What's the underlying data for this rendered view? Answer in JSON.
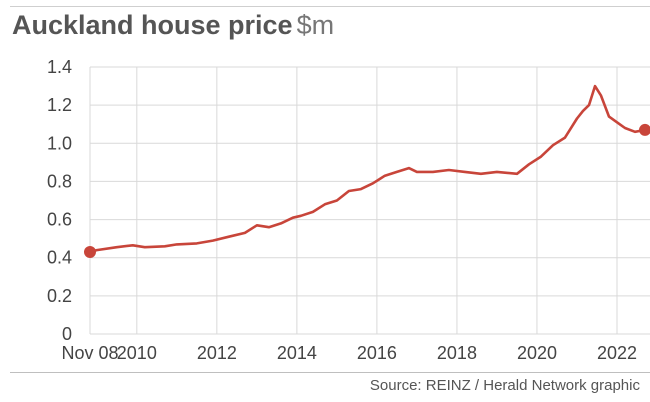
{
  "header": {
    "title": "Auckland house price",
    "unit": "$m"
  },
  "footer": {
    "source": "Source: REINZ / Herald Network graphic"
  },
  "colors": {
    "line": "#c8453a",
    "grid": "#d9d9d9",
    "text": "#444444"
  },
  "chart_data": {
    "type": "line",
    "title": "Auckland house price",
    "ylabel": "$m",
    "xlim": [
      2008.83,
      2022.7
    ],
    "ylim": [
      0,
      1.4
    ],
    "yticks": [
      0,
      0.2,
      0.4,
      0.6,
      0.8,
      1.0,
      1.2,
      1.4
    ],
    "ytick_labels": [
      "0",
      "0.2",
      "0.4",
      "0.6",
      "0.8",
      "1.0",
      "1.2",
      "1.4"
    ],
    "xticks": [
      2008.83,
      2010,
      2012,
      2014,
      2016,
      2018,
      2020,
      2022
    ],
    "xtick_labels": [
      "Nov 08",
      "2010",
      "2012",
      "2014",
      "2016",
      "2018",
      "2020",
      "2022"
    ],
    "grid": true,
    "markers": [
      "start",
      "end"
    ],
    "x": [
      2008.83,
      2009.0,
      2009.5,
      2009.9,
      2010.2,
      2010.7,
      2011.0,
      2011.5,
      2011.9,
      2012.3,
      2012.7,
      2013.0,
      2013.3,
      2013.6,
      2013.9,
      2014.1,
      2014.4,
      2014.7,
      2015.0,
      2015.3,
      2015.6,
      2015.9,
      2016.2,
      2016.5,
      2016.8,
      2017.0,
      2017.4,
      2017.8,
      2018.2,
      2018.6,
      2019.0,
      2019.5,
      2019.8,
      2020.1,
      2020.4,
      2020.7,
      2021.0,
      2021.15,
      2021.3,
      2021.45,
      2021.6,
      2021.8,
      2022.0,
      2022.2,
      2022.45,
      2022.7
    ],
    "values": [
      0.43,
      0.44,
      0.455,
      0.465,
      0.455,
      0.46,
      0.47,
      0.475,
      0.49,
      0.51,
      0.53,
      0.57,
      0.56,
      0.58,
      0.61,
      0.62,
      0.64,
      0.68,
      0.7,
      0.75,
      0.76,
      0.79,
      0.83,
      0.85,
      0.87,
      0.85,
      0.85,
      0.86,
      0.85,
      0.84,
      0.85,
      0.84,
      0.89,
      0.93,
      0.99,
      1.03,
      1.13,
      1.17,
      1.2,
      1.3,
      1.25,
      1.14,
      1.11,
      1.08,
      1.06,
      1.07
    ]
  }
}
